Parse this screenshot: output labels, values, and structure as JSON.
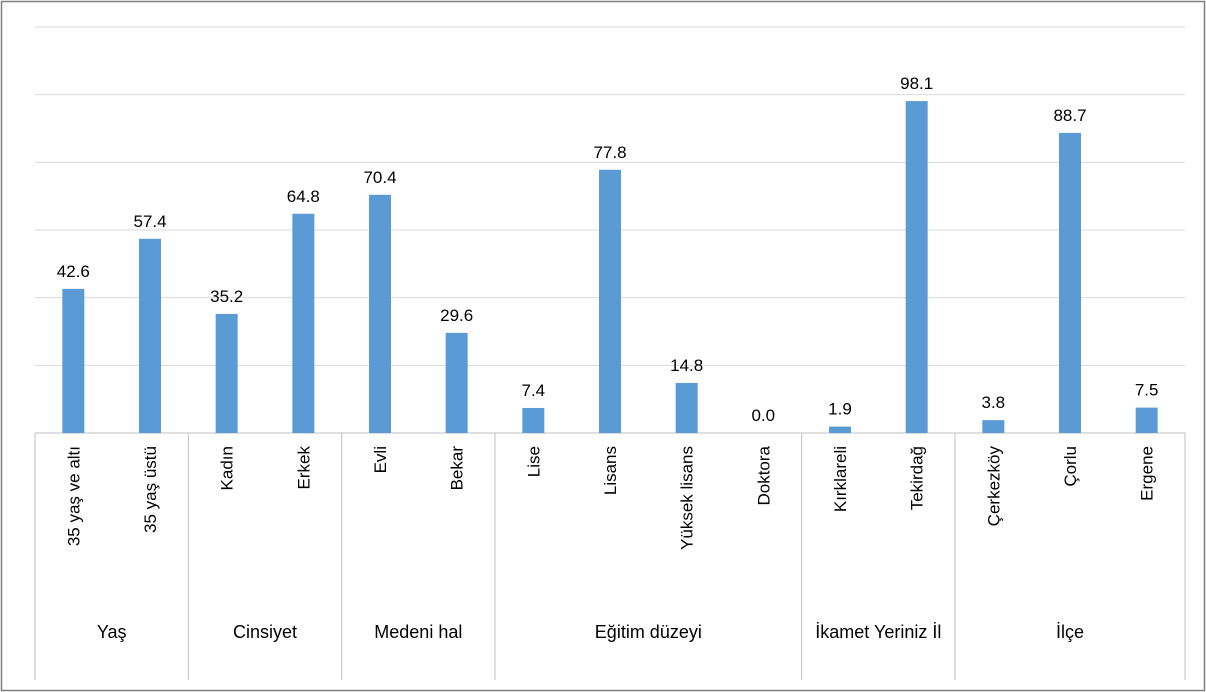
{
  "chart_data": {
    "type": "bar",
    "color": "#5b9bd5",
    "ylim": [
      0,
      120
    ],
    "yticks": [
      0,
      20,
      40,
      60,
      80,
      100,
      120
    ],
    "grid": true,
    "groups": [
      {
        "name": "Yaş",
        "categories": [
          "35 yaş ve altı",
          "35 yaş üstü"
        ],
        "values": [
          42.6,
          57.4
        ],
        "value_labels": [
          "42.6",
          "57.4"
        ]
      },
      {
        "name": "Cinsiyet",
        "categories": [
          "Kadın",
          "Erkek"
        ],
        "values": [
          35.2,
          64.8
        ],
        "value_labels": [
          "35.2",
          "64.8"
        ]
      },
      {
        "name": "Medeni hal",
        "categories": [
          "Evli",
          "Bekar"
        ],
        "values": [
          70.4,
          29.6
        ],
        "value_labels": [
          "70.4",
          "29.6"
        ]
      },
      {
        "name": "Eğitim düzeyi",
        "categories": [
          "Lise",
          "Lisans",
          "Yüksek lisans",
          "Doktora"
        ],
        "values": [
          7.4,
          77.8,
          14.8,
          0
        ],
        "value_labels": [
          "7.4",
          "77.8",
          "14.8",
          "0.0"
        ]
      },
      {
        "name": "İkamet Yeriniz  İl",
        "categories": [
          "Kırklareli",
          "Tekirdağ"
        ],
        "values": [
          1.9,
          98.1
        ],
        "value_labels": [
          "1.9",
          "98.1"
        ]
      },
      {
        "name": "İlçe",
        "categories": [
          "Çerkezköy",
          "Çorlu",
          "Ergene"
        ],
        "values": [
          3.8,
          88.7,
          7.5
        ],
        "value_labels": [
          "3.8",
          "88.7",
          "7.5"
        ]
      }
    ]
  }
}
